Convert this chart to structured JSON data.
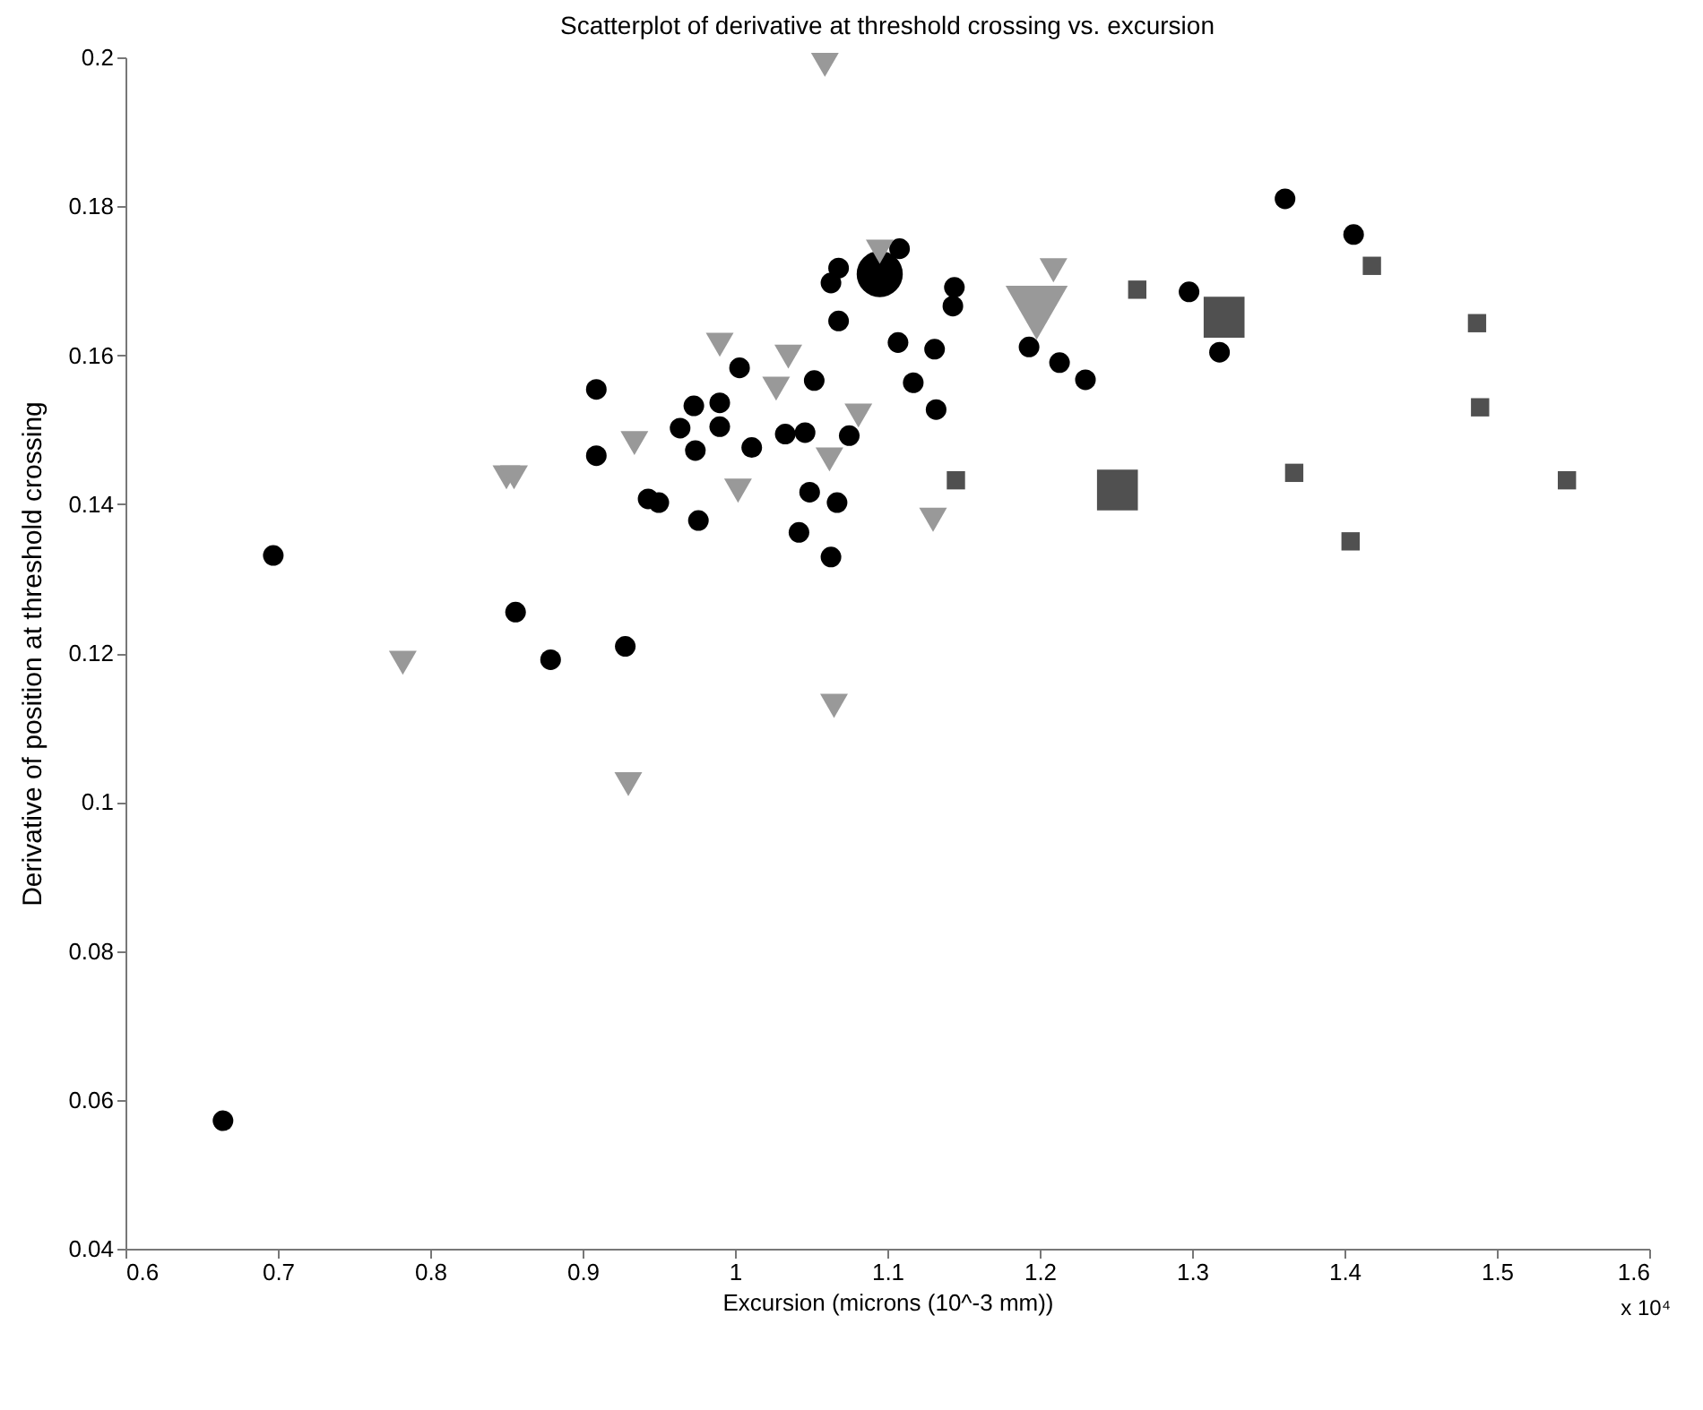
{
  "chart_data": {
    "type": "bubble",
    "title": "Scatterplot of derivative at threshold crossing vs. excursion",
    "xlabel": "Excursion (microns (10^-3 mm))",
    "ylabel": "Derivative of position at threshold crossing",
    "annotations": [
      "x 10⁴"
    ],
    "xlim": [
      0.6,
      1.6
    ],
    "xticks": [
      0.6,
      0.7,
      0.8,
      0.9,
      1,
      1.1,
      1.2,
      1.3,
      1.4,
      1.5,
      1.6
    ],
    "ylim": [
      0.04,
      0.2
    ],
    "yticks": [
      0.04,
      0.06,
      0.08,
      0.1,
      0.12,
      0.14,
      0.16,
      0.18,
      0.2
    ],
    "series": [
      {
        "color": "#000000",
        "marker": "circle",
        "x": [
          0.697,
          0.909,
          0.909,
          0.856,
          0.879,
          0.928,
          0.943,
          0.95,
          1.003,
          0.973,
          0.99,
          0.964,
          0.99,
          0.974,
          1.011,
          0.976,
          1.052,
          1.033,
          1.046,
          1.075,
          1.049,
          1.067,
          1.042,
          1.063,
          1.068,
          1.063,
          1.068,
          1.095,
          1.108,
          1.144,
          1.143,
          1.107,
          1.131,
          1.117,
          1.132,
          1.193,
          1.213,
          1.23,
          1.298,
          1.318,
          1.361,
          1.406,
          0.664
        ],
        "values": [
          0.1331,
          0.1554,
          0.1465,
          0.1255,
          0.1191,
          0.1209,
          0.1407,
          0.1402,
          0.1583,
          0.1532,
          0.1536,
          0.1502,
          0.1504,
          0.1472,
          0.1476,
          0.1378,
          0.1566,
          0.1494,
          0.1496,
          0.1492,
          0.1416,
          0.1402,
          0.1362,
          0.1329,
          0.1646,
          0.1697,
          0.1717,
          0.1709,
          0.1743,
          0.1691,
          0.1666,
          0.1617,
          0.1608,
          0.1563,
          0.1527,
          0.1611,
          0.159,
          0.1567,
          0.1685,
          0.1604,
          0.181,
          0.1762,
          0.0572
        ],
        "sizes": [
          0.2,
          0.2,
          0.2,
          0.2,
          0.2,
          0.2,
          0.2,
          0.2,
          0.2,
          0.2,
          0.2,
          0.2,
          0.2,
          0.2,
          0.2,
          0.2,
          0.2,
          0.2,
          0.2,
          0.2,
          0.2,
          0.2,
          0.2,
          0.2,
          0.2,
          0.2,
          0.2,
          1,
          0.2,
          0.2,
          0.2,
          0.2,
          0.2,
          0.2,
          0.2,
          0.2,
          0.2,
          0.2,
          0.2,
          0.2,
          0.2,
          0.2,
          0.2
        ]
      },
      {
        "color": "#999999",
        "marker": "triangle",
        "x": [
          0.782,
          0.85,
          0.855,
          0.934,
          0.93,
          1.059,
          1.095,
          0.99,
          1.035,
          1.027,
          1.081,
          1.062,
          1.002,
          1.13,
          1.065,
          1.209,
          1.198
        ],
        "values": [
          0.1187,
          0.1436,
          0.1436,
          0.1482,
          0.1024,
          0.199,
          0.1739,
          0.1614,
          0.1598,
          0.1555,
          0.1519,
          0.146,
          0.1418,
          0.1379,
          0.1129,
          0.1714,
          0.1657
        ],
        "sizes": [
          0.2,
          0.2,
          0.2,
          0.2,
          0.2,
          0.2,
          0.2,
          0.2,
          0.2,
          0.2,
          0.2,
          0.2,
          0.2,
          0.2,
          0.2,
          0.2,
          1
        ]
      },
      {
        "color": "#505050",
        "marker": "square",
        "x": [
          1.145,
          1.264,
          1.321,
          1.251,
          1.418,
          1.487,
          1.489,
          1.367,
          1.404,
          1.546
        ],
        "values": [
          0.1432,
          0.1688,
          0.1651,
          0.1419,
          0.172,
          0.1643,
          0.153,
          0.1442,
          0.135,
          0.1432
        ],
        "sizes": [
          0.2,
          0.2,
          1,
          1,
          0.2,
          0.2,
          0.2,
          0.2,
          0.2,
          0.2
        ]
      }
    ]
  }
}
